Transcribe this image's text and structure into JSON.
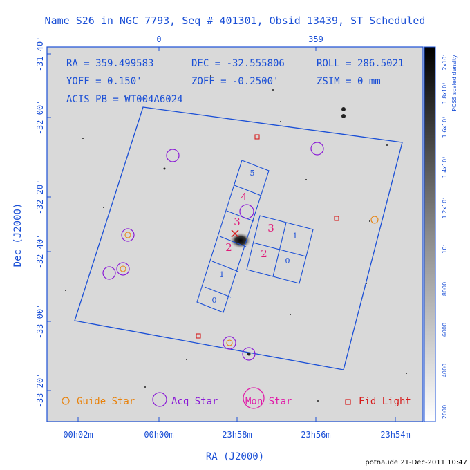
{
  "title": "Name S26 in NGC 7793, Seq # 401301, Obsid 13439, ST Scheduled",
  "top_axis": {
    "ticks": [
      "0",
      "359"
    ]
  },
  "info": {
    "ra": "RA = 359.499583",
    "dec": "DEC = -32.555806",
    "roll": "ROLL = 286.5021",
    "yoff": "YOFF = 0.150'",
    "zoff": "ZOFF = -0.2500'",
    "zsim": "ZSIM = 0 mm",
    "acis": "ACIS PB = WT004A6024"
  },
  "y_axis": {
    "label": "Dec (J2000)",
    "ticks": [
      "-31 40'",
      "-32 00'",
      "-32 20'",
      "-32 40'",
      "-33 00'",
      "-33 20'"
    ]
  },
  "x_axis": {
    "label": "RA (J2000)",
    "ticks": [
      "00h02m",
      "00h00m",
      "23h58m",
      "23h56m",
      "23h54m"
    ]
  },
  "colorbar": {
    "label": "POSS scaled density",
    "ticks": [
      "2000",
      "4000",
      "6000",
      "8000",
      "10⁴",
      "1.2x10⁴",
      "1.4x10⁴",
      "1.6x10⁴",
      "1.8x10⁴",
      "2x10⁴"
    ]
  },
  "chips": {
    "s_array": [
      "5",
      "4",
      "3",
      "2",
      "1",
      "0"
    ],
    "i_array": [
      "3",
      "1",
      "2",
      "0"
    ]
  },
  "legend": {
    "guide": "Guide Star",
    "acq": "Acq Star",
    "mon": "Mon Star",
    "fid": "Fid Light"
  },
  "footer": "potnaude 21-Dec-2011 10:47",
  "colors": {
    "axis": "#1a4fd6",
    "guide": "#e8820c",
    "acq": "#8a1ad6",
    "mon": "#e01aa8",
    "fid": "#d61a1a",
    "chip_label": "#e01a78"
  }
}
